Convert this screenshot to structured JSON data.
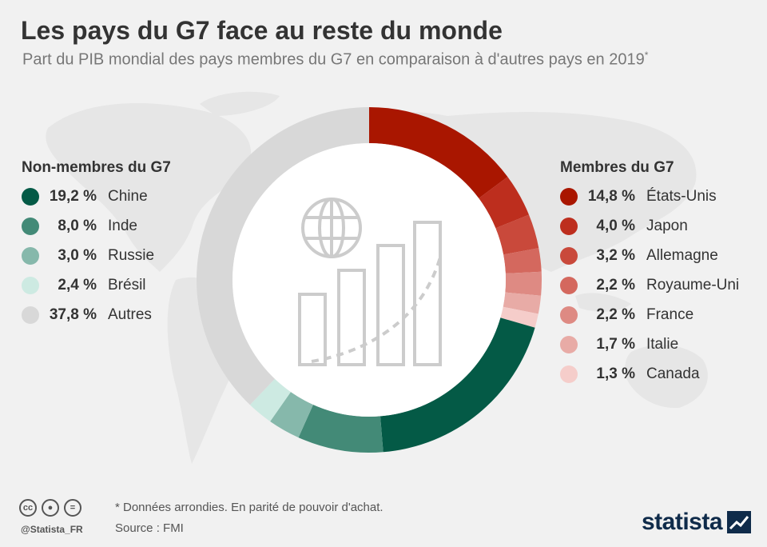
{
  "title": "Les pays du G7 face au reste du monde",
  "subtitle": "Part du PIB mondial des pays membres du G7 en comparaison à d'autres pays en 2019",
  "subtitle_mark": "*",
  "footer": {
    "note": "* Données arrondies. En parité de pouvoir d'achat.",
    "source": "Source : FMI",
    "handle": "@Statista_FR",
    "brand": "statista",
    "cc_icons": [
      "cc-icon",
      "by-icon",
      "nd-icon"
    ]
  },
  "chart_data": {
    "type": "donut",
    "title": "Les pays du G7 face au reste du monde",
    "unit": "%",
    "groups": [
      {
        "name": "Membres du G7",
        "items": [
          {
            "label": "États-Unis",
            "value": 14.8,
            "display": "14,8 %",
            "color": "#a91600"
          },
          {
            "label": "Japon",
            "value": 4.0,
            "display": "4,0 %",
            "color": "#bd2e1e"
          },
          {
            "label": "Allemagne",
            "value": 3.2,
            "display": "3,2 %",
            "color": "#c9493b"
          },
          {
            "label": "Royaume-Uni",
            "value": 2.2,
            "display": "2,2 %",
            "color": "#d4685e"
          },
          {
            "label": "France",
            "value": 2.2,
            "display": "2,2 %",
            "color": "#de8a83"
          },
          {
            "label": "Italie",
            "value": 1.7,
            "display": "1,7 %",
            "color": "#e8aba6"
          },
          {
            "label": "Canada",
            "value": 1.3,
            "display": "1,3 %",
            "color": "#f5cdca"
          }
        ]
      },
      {
        "name": "Non-membres du G7",
        "items": [
          {
            "label": "Chine",
            "value": 19.2,
            "display": "19,2 %",
            "color": "#045a46"
          },
          {
            "label": "Inde",
            "value": 8.0,
            "display": "8,0 %",
            "color": "#438a77"
          },
          {
            "label": "Russie",
            "value": 3.0,
            "display": "3,0 %",
            "color": "#86b8ab"
          },
          {
            "label": "Brésil",
            "value": 2.4,
            "display": "2,4 %",
            "color": "#cdeae2"
          },
          {
            "label": "Autres",
            "value": 37.8,
            "display": "37,8 %",
            "color": "#d8d8d8"
          }
        ]
      }
    ],
    "slice_order": [
      "États-Unis",
      "Japon",
      "Allemagne",
      "Royaume-Uni",
      "France",
      "Italie",
      "Canada",
      "Chine",
      "Inde",
      "Russie",
      "Brésil",
      "Autres"
    ],
    "start": "top",
    "direction": "clockwise"
  },
  "center_icon": "globe-growth-bar-chart-icon",
  "colors": {
    "background": "#f1f1f1",
    "map": "#e6e6e6",
    "icon": "#cccccc",
    "brand": "#0f2b4a"
  }
}
